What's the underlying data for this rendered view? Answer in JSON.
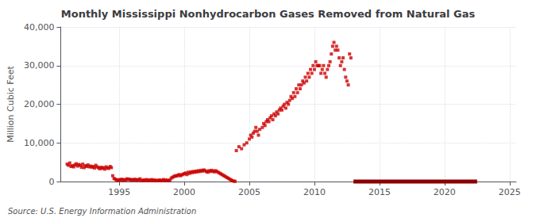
{
  "chart_data": {
    "type": "scatter",
    "title": "Monthly Mississippi Nonhydrocarbon Gases Removed from Natural Gas",
    "ylabel": "Million Cubic Feet",
    "annotations": [
      "Source: U.S. Energy Information Administration"
    ],
    "xlim": [
      1990.5,
      2025.5
    ],
    "xticks": [
      1995,
      2000,
      2005,
      2010,
      2015,
      2020,
      2025
    ],
    "ylim": [
      0,
      40000
    ],
    "yticks": [
      0,
      {
        "value": 10000,
        "label": "10,000"
      },
      {
        "value": 20000,
        "label": "20,000"
      },
      {
        "value": 30000,
        "label": "30,000"
      },
      {
        "value": 40000,
        "label": "40,000"
      }
    ],
    "grid": true,
    "series": [
      {
        "type": "scatter",
        "marker": "square",
        "color": "#cc0000",
        "x": [
          1991.0,
          1991.1,
          1991.2,
          1991.3,
          1991.4,
          1991.5,
          1991.6,
          1991.7,
          1991.8,
          1991.9,
          1992.0,
          1992.1,
          1992.2,
          1992.3,
          1992.4,
          1992.5,
          1992.6,
          1992.7,
          1992.8,
          1992.9,
          1993.0,
          1993.1,
          1993.2,
          1993.3,
          1993.4,
          1993.5,
          1993.6,
          1993.7,
          1993.8,
          1993.9,
          1994.0,
          1994.1,
          1994.2,
          1994.3,
          1994.4,
          1994.5,
          1994.6,
          1994.7,
          1994.8,
          1994.9,
          1995.0,
          1995.1,
          1995.2,
          1995.3,
          1995.4,
          1995.5,
          1995.6,
          1995.7,
          1995.8,
          1995.9,
          1996.0,
          1996.1,
          1996.2,
          1996.3,
          1996.4,
          1996.5,
          1996.6,
          1996.7,
          1996.8,
          1996.9,
          1997.0,
          1997.1,
          1997.2,
          1997.3,
          1997.4,
          1997.5,
          1997.6,
          1997.7,
          1997.8,
          1997.9,
          1998.0,
          1998.1,
          1998.2,
          1998.3,
          1998.4,
          1998.5,
          1998.6,
          1998.7,
          1998.8,
          1998.9,
          1999.0,
          1999.1,
          1999.2,
          1999.3,
          1999.4,
          1999.5,
          1999.6,
          1999.7,
          1999.8,
          1999.9,
          2000.0,
          2000.1,
          2000.2,
          2000.3,
          2000.4,
          2000.5,
          2000.6,
          2000.7,
          2000.8,
          2000.9,
          2001.0,
          2001.1,
          2001.2,
          2001.3,
          2001.4,
          2001.5,
          2001.6,
          2001.7,
          2001.8,
          2001.9,
          2002.0,
          2002.1,
          2002.2,
          2002.3,
          2002.4,
          2002.5,
          2002.6,
          2002.7,
          2002.8,
          2002.9,
          2003.0,
          2003.1,
          2003.2,
          2003.3,
          2003.4,
          2003.5,
          2003.6,
          2003.7,
          2003.8,
          2003.9,
          2004.0,
          2004.2,
          2004.4,
          2004.6,
          2004.8,
          2005.0,
          2005.1,
          2005.2,
          2005.3,
          2005.4,
          2005.5,
          2005.6,
          2005.7,
          2005.8,
          2006.0,
          2006.1,
          2006.2,
          2006.3,
          2006.4,
          2006.5,
          2006.6,
          2006.7,
          2006.8,
          2006.9,
          2007.0,
          2007.1,
          2007.2,
          2007.3,
          2007.4,
          2007.5,
          2007.6,
          2007.7,
          2007.8,
          2007.9,
          2008.0,
          2008.1,
          2008.2,
          2008.3,
          2008.4,
          2008.5,
          2008.6,
          2008.7,
          2008.8,
          2008.9,
          2009.0,
          2009.1,
          2009.2,
          2009.3,
          2009.4,
          2009.5,
          2009.6,
          2009.7,
          2009.8,
          2009.9,
          2010.0,
          2010.1,
          2010.2,
          2010.3,
          2010.4,
          2010.5,
          2010.6,
          2010.7,
          2010.8,
          2010.9,
          2011.0,
          2011.1,
          2011.2,
          2011.3,
          2011.4,
          2011.5,
          2011.6,
          2011.7,
          2011.8,
          2011.9,
          2012.0,
          2012.1,
          2012.2,
          2012.3,
          2012.4,
          2012.5,
          2012.6,
          2012.7,
          2012.8
        ],
        "values": [
          4500,
          4200,
          4800,
          3900,
          4100,
          3800,
          4300,
          4600,
          4000,
          4400,
          4200,
          3700,
          4500,
          3600,
          4100,
          3900,
          4300,
          3800,
          4000,
          3700,
          3900,
          3500,
          4200,
          3800,
          3600,
          3300,
          3700,
          3400,
          3600,
          3200,
          3800,
          3500,
          3400,
          3900,
          3600,
          1500,
          800,
          600,
          400,
          300,
          500,
          400,
          600,
          300,
          500,
          400,
          700,
          500,
          600,
          400,
          500,
          400,
          600,
          300,
          500,
          400,
          700,
          200,
          300,
          400,
          300,
          500,
          200,
          400,
          300,
          500,
          200,
          400,
          300,
          200,
          300,
          400,
          200,
          300,
          500,
          200,
          400,
          300,
          200,
          400,
          900,
          1100,
          1300,
          1500,
          1400,
          1600,
          1800,
          1500,
          1700,
          1900,
          2000,
          2200,
          1800,
          2400,
          2100,
          2500,
          2300,
          2600,
          2400,
          2700,
          2500,
          2800,
          2600,
          2900,
          2700,
          3000,
          2800,
          2600,
          2400,
          2800,
          2600,
          2900,
          2700,
          2500,
          2800,
          2600,
          2400,
          2200,
          2000,
          1800,
          1600,
          1400,
          1200,
          1000,
          800,
          600,
          400,
          200,
          100,
          50,
          8000,
          9000,
          8500,
          9500,
          10000,
          11000,
          12000,
          11500,
          12500,
          13000,
          14000,
          13000,
          12000,
          13500,
          14000,
          15000,
          14500,
          15500,
          16000,
          15500,
          16500,
          17000,
          16000,
          17500,
          17000,
          18000,
          17500,
          18500,
          19000,
          18500,
          19500,
          20000,
          19000,
          20500,
          20000,
          21000,
          22000,
          21500,
          23000,
          22000,
          24000,
          23000,
          25000,
          24000,
          25000,
          26000,
          25500,
          27000,
          26000,
          28000,
          27000,
          29000,
          28000,
          30000,
          29000,
          31000,
          30000,
          30000,
          30000,
          28000,
          29000,
          30000,
          28000,
          27000,
          29000,
          30000,
          31000,
          33000,
          35000,
          36000,
          34000,
          35000,
          34000,
          32000,
          30000,
          31000,
          32000,
          29000,
          27000,
          26000,
          25000,
          33000,
          32000
        ]
      },
      {
        "type": "line",
        "color": "#8b0000",
        "x": [
          2013.0,
          2022.5
        ],
        "values": [
          0,
          0
        ]
      }
    ]
  }
}
